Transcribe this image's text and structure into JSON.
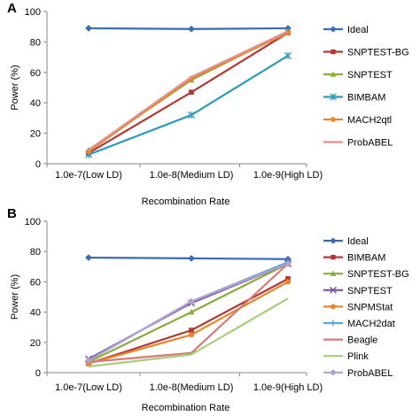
{
  "chart_data": [
    {
      "panel_label": "A",
      "type": "line",
      "categories": [
        "1.0e-7(Low LD)",
        "1.0e-8(Medium LD)",
        "1.0e-9(High LD)"
      ],
      "xlabel": "Recombination Rate",
      "ylabel": "Power (%)",
      "ylim": [
        0,
        100
      ],
      "yticks": [
        0,
        20,
        40,
        60,
        80,
        100
      ],
      "grid": false,
      "legend_position": "right",
      "series": [
        {
          "name": "Ideal",
          "values": [
            89,
            88.5,
            89
          ],
          "color": "#3a6cb5",
          "marker": "diamond"
        },
        {
          "name": "SNPTEST-BG",
          "values": [
            7,
            47,
            86
          ],
          "color": "#b03a35",
          "marker": "square"
        },
        {
          "name": "SNPTEST",
          "values": [
            9,
            55,
            87
          ],
          "color": "#8aac3f",
          "marker": "triangle"
        },
        {
          "name": "BIMBAM",
          "values": [
            6,
            32,
            71
          ],
          "color": "#2e9bb8",
          "marker": "star"
        },
        {
          "name": "MACH2qtl",
          "values": [
            8,
            56,
            86
          ],
          "color": "#e8862e",
          "marker": "circle"
        },
        {
          "name": "ProbABEL",
          "values": [
            9,
            57,
            87
          ],
          "color": "#e0908c",
          "marker": "none"
        }
      ]
    },
    {
      "panel_label": "B",
      "type": "line",
      "categories": [
        "1.0e-7(Low LD)",
        "1.0e-8(Medium LD)",
        "1.0e-9(High LD)"
      ],
      "xlabel": "Recombination Rate",
      "ylabel": "Power (%)",
      "ylim": [
        0,
        100
      ],
      "yticks": [
        0,
        20,
        40,
        60,
        80,
        100
      ],
      "grid": false,
      "legend_position": "right",
      "series": [
        {
          "name": "Ideal",
          "values": [
            76,
            75.5,
            75
          ],
          "color": "#3a6cb5",
          "marker": "diamond"
        },
        {
          "name": "BIMBAM",
          "values": [
            6,
            28,
            62
          ],
          "color": "#b03a35",
          "marker": "square"
        },
        {
          "name": "SNPTEST-BG",
          "values": [
            7,
            40,
            72
          ],
          "color": "#8aac3f",
          "marker": "triangle"
        },
        {
          "name": "SNPTEST",
          "values": [
            9,
            46,
            72
          ],
          "color": "#7c56a6",
          "marker": "cross"
        },
        {
          "name": "SNPMStat",
          "values": [
            6,
            25,
            60
          ],
          "color": "#e8862e",
          "marker": "circle"
        },
        {
          "name": "MACH2dat",
          "values": [
            8,
            47,
            73
          ],
          "color": "#5aa8d4",
          "marker": "plus"
        },
        {
          "name": "Beagle",
          "values": [
            7,
            13,
            72
          ],
          "color": "#d27b78",
          "marker": "none"
        },
        {
          "name": "Plink",
          "values": [
            4,
            12,
            49
          ],
          "color": "#a9cd7c",
          "marker": "none"
        },
        {
          "name": "ProbABEL",
          "values": [
            8,
            47,
            72
          ],
          "color": "#b4a0cd",
          "marker": "diamond"
        }
      ]
    }
  ]
}
